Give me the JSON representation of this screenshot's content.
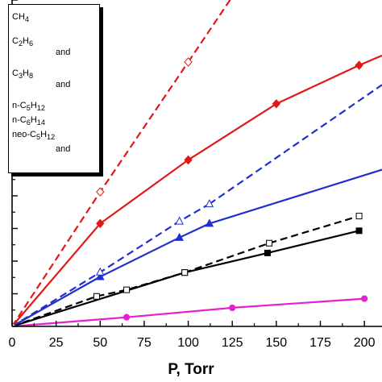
{
  "chart_data": {
    "type": "line",
    "xlabel": "P, Torr",
    "xlim": [
      0,
      210
    ],
    "ylim": [
      0,
      1
    ],
    "xticks": [
      0,
      25,
      50,
      75,
      100,
      125,
      150,
      175,
      200
    ],
    "series": [
      {
        "name": "CH4",
        "color": "#e61fd0",
        "style": "solid",
        "marker": "circle-filled",
        "x": [
          0,
          65,
          125,
          200
        ],
        "y": [
          0.0,
          0.028,
          0.057,
          0.085
        ]
      },
      {
        "name": "C2H6 (solid)",
        "color": "#000000",
        "style": "solid",
        "marker": "square-filled",
        "x": [
          0,
          98,
          145,
          197
        ],
        "y": [
          0.0,
          0.165,
          0.225,
          0.293
        ]
      },
      {
        "name": "C2H6 (dashed)",
        "color": "#000000",
        "style": "dashed",
        "marker": "square-open",
        "x": [
          0,
          48,
          65,
          98,
          146,
          197
        ],
        "y": [
          0.0,
          0.092,
          0.112,
          0.165,
          0.255,
          0.338
        ]
      },
      {
        "name": "C3H8 (solid)",
        "color": "#1f2fd0",
        "style": "solid",
        "marker": "triangle-filled",
        "x": [
          0,
          50,
          95,
          112
        ],
        "y": [
          0.0,
          0.152,
          0.272,
          0.315
        ]
      },
      {
        "name": "C3H8 (dashed)",
        "color": "#1f2fd0",
        "style": "dashed",
        "marker": "triangle-open",
        "x": [
          0,
          50,
          95,
          112
        ],
        "y": [
          0.0,
          0.166,
          0.322,
          0.375
        ]
      },
      {
        "name": "neo-C5H12 (solid)",
        "color": "#e01818",
        "style": "solid",
        "marker": "diamond-filled",
        "x": [
          0,
          50,
          100,
          150,
          197
        ],
        "y": [
          0.0,
          0.315,
          0.51,
          0.682,
          0.8
        ]
      },
      {
        "name": "neo-C5H12 (dashed)",
        "color": "#e01818",
        "style": "dashed",
        "marker": "diamond-open",
        "x": [
          0,
          50,
          100
        ],
        "y": [
          0.0,
          0.412,
          0.81
        ]
      }
    ],
    "lines_no_markers": [
      {
        "color": "#1f2fd0",
        "style": "solid",
        "x": [
          112,
          210
        ],
        "y": [
          0.315,
          0.48
        ]
      },
      {
        "color": "#1f2fd0",
        "style": "dashed",
        "x": [
          112,
          210
        ],
        "y": [
          0.375,
          0.74
        ]
      },
      {
        "color": "#e01818",
        "style": "solid",
        "x": [
          197,
          210
        ],
        "y": [
          0.8,
          0.83
        ]
      },
      {
        "color": "#e01818",
        "style": "dashed",
        "x": [
          100,
          130
        ],
        "y": [
          0.81,
          1.05
        ]
      }
    ],
    "legend": {
      "placement": "top-left",
      "entries": [
        {
          "parts": [
            "CH",
            "4"
          ]
        },
        {
          "parts": [
            "C",
            "2",
            "H",
            "6"
          ],
          "and": "and"
        },
        {
          "parts": [
            "C",
            "3",
            "H",
            "8"
          ],
          "and": "and"
        },
        {
          "parts": [
            "n-C",
            "5",
            "H",
            "12"
          ]
        },
        {
          "parts": [
            "n-C",
            "6",
            "H",
            "14"
          ]
        },
        {
          "parts": [
            "neo-C",
            "5",
            "H",
            "12"
          ],
          "and": "and"
        }
      ]
    }
  }
}
